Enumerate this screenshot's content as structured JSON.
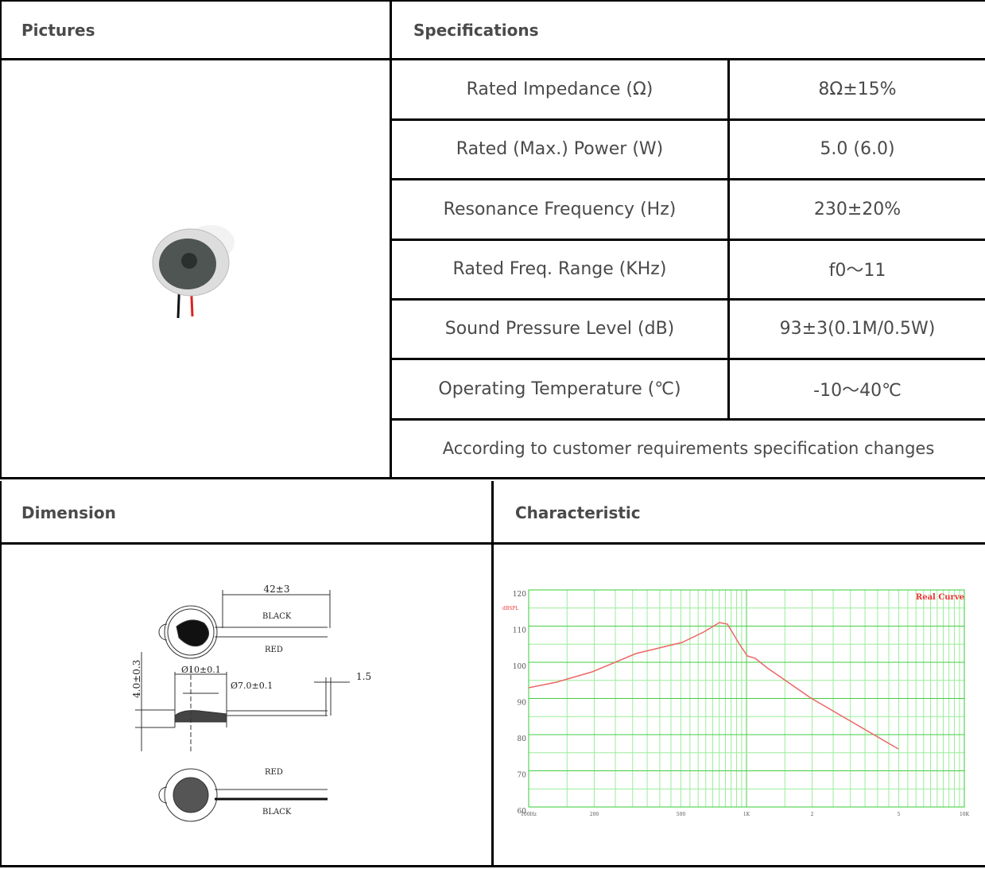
{
  "top_table": {
    "headers": [
      "Pictures",
      "Specifications"
    ],
    "specs": [
      [
        "Rated Impedance (Ω)",
        "8Ω±15%"
      ],
      [
        "Rated (Max.) Power (W)",
        "5.0 (6.0)"
      ],
      [
        "Resonance Frequency (Hz)",
        "230±20%"
      ],
      [
        "Rated Freq. Range (KHz)",
        "f0～11"
      ],
      [
        "Sound Pressure Level (dB)",
        "93±3(0.1M/0.5W)"
      ],
      [
        "Operating Temperature (℃)",
        "-10～40℃"
      ]
    ],
    "note": "According to customer requirements specification changes"
  },
  "bottom_table": {
    "headers": [
      "Dimension",
      "Characteristic"
    ]
  },
  "dimension_drawing": {
    "labels": [
      "42±3",
      "BLACK",
      "RED",
      "Ø10±0.1",
      "Ø7.0±0.1",
      "1.5",
      "4.0±0.3",
      "RED",
      "BLACK"
    ]
  },
  "characteristic_plot": {
    "legend": "Real Curve",
    "y_unit": "dBSPL",
    "y_labels": [
      "120",
      "110",
      "100",
      "90",
      "80",
      "70",
      "60"
    ],
    "x_labels": [
      "100Hz",
      "200",
      "500",
      "1K",
      "2",
      "5",
      "10K"
    ]
  }
}
